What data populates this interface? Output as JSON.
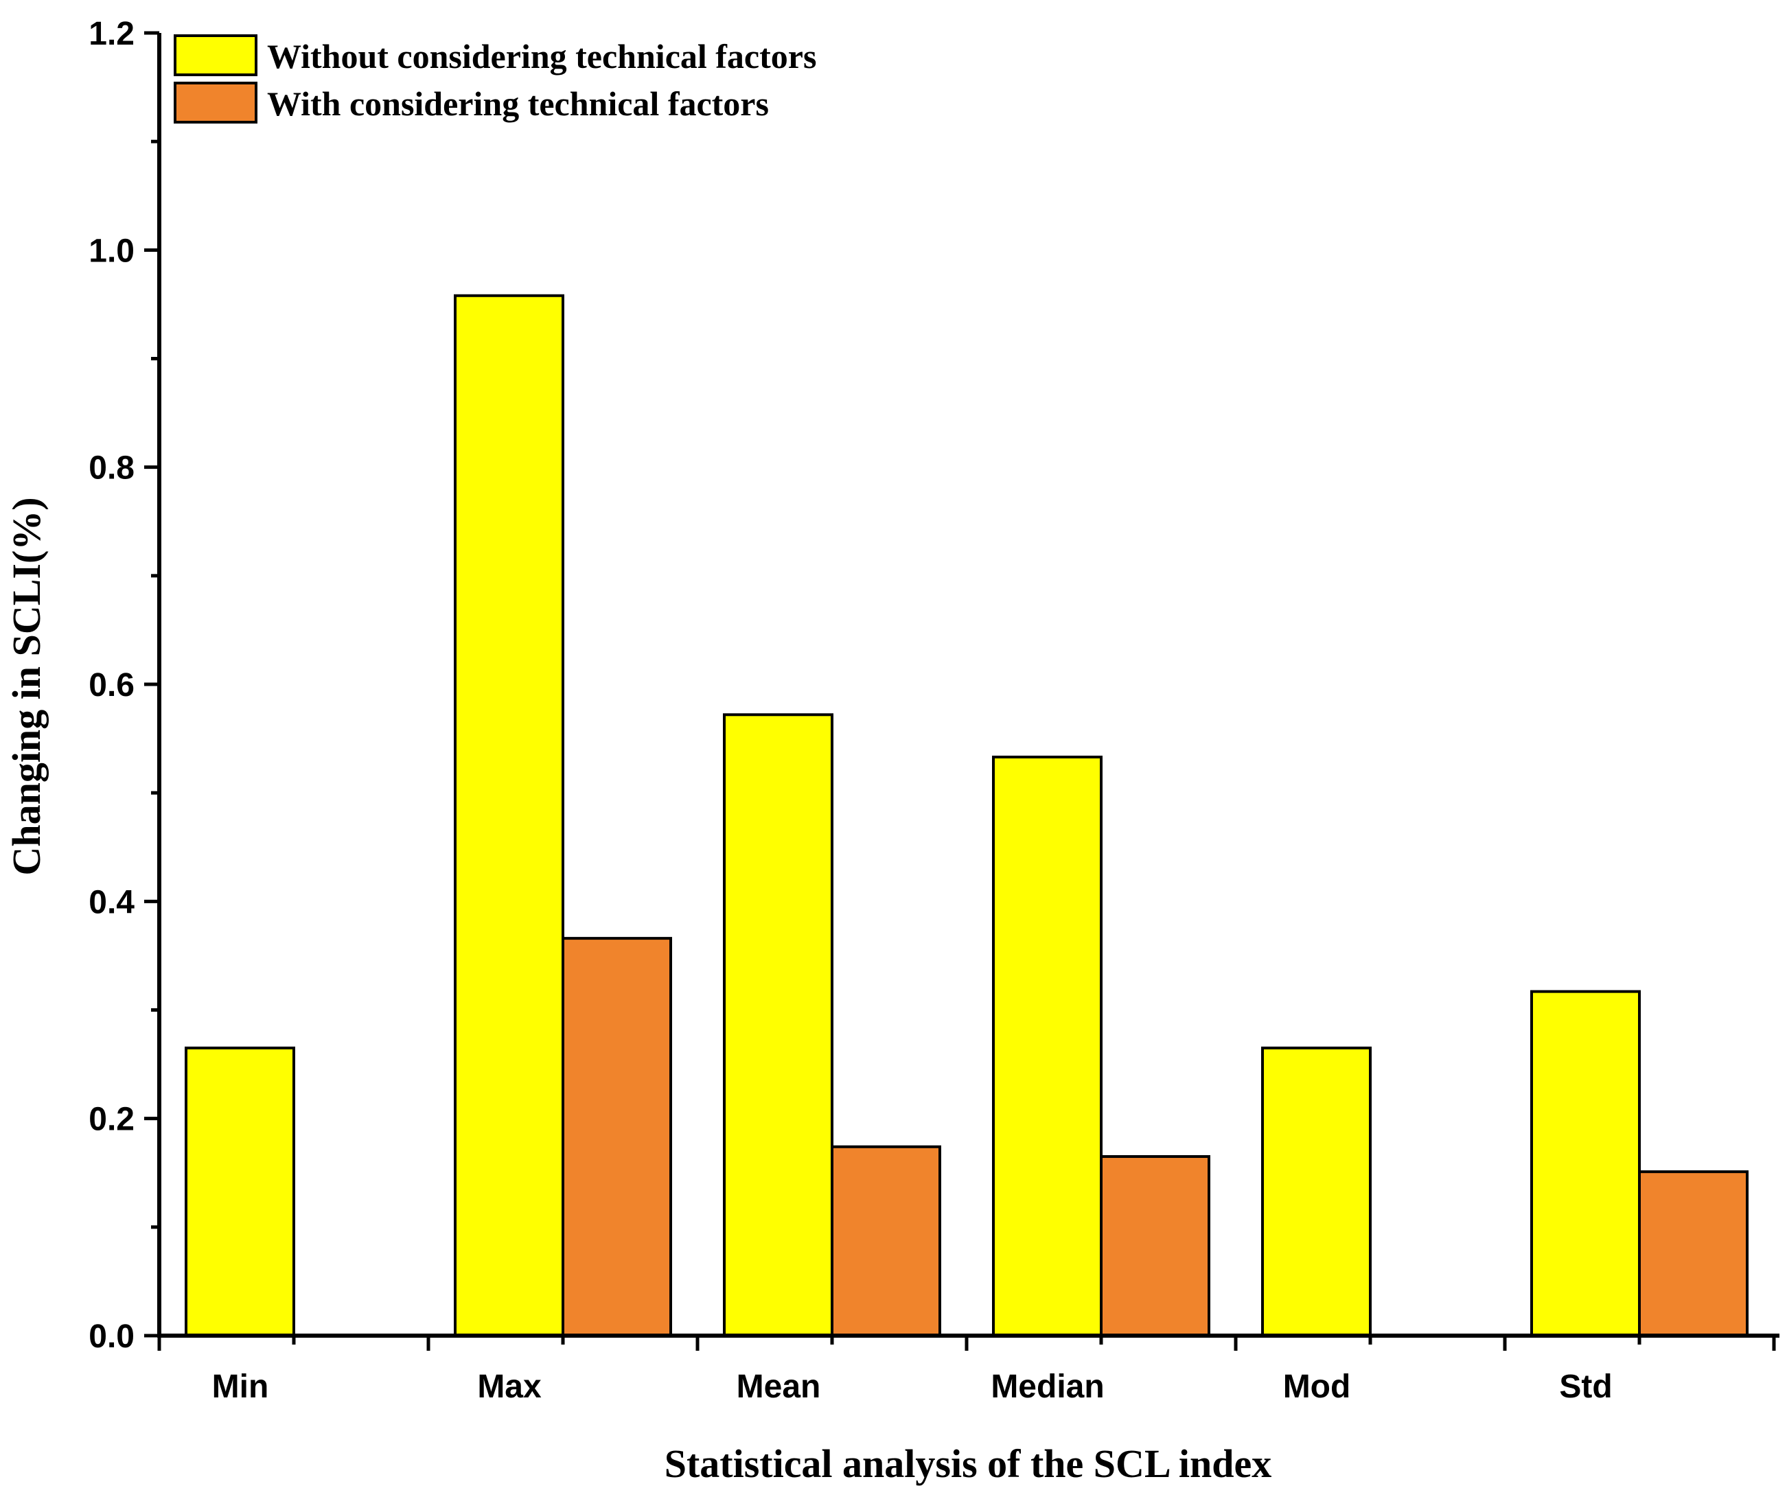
{
  "chart_data": {
    "type": "bar",
    "title": "",
    "xlabel": "Statistical analysis of the SCL index",
    "ylabel": "Changing in SCLI(%)",
    "ylim": [
      0,
      1.2
    ],
    "yticks": [
      "0.0",
      "0.2",
      "0.4",
      "0.6",
      "0.8",
      "1.0",
      "1.2"
    ],
    "categories": [
      "Min",
      "Max",
      "Mean",
      "Median",
      "Mod",
      "Std"
    ],
    "series": [
      {
        "name": "Without considering technical factors",
        "color": "#ffff00",
        "values": [
          0.265,
          0.958,
          0.572,
          0.533,
          0.265,
          0.317
        ]
      },
      {
        "name": "With considering technical factors",
        "color": "#f0842c",
        "values": [
          0,
          0.366,
          0.174,
          0.165,
          0,
          0.151
        ]
      }
    ],
    "legend": "top-left",
    "grid": false
  }
}
